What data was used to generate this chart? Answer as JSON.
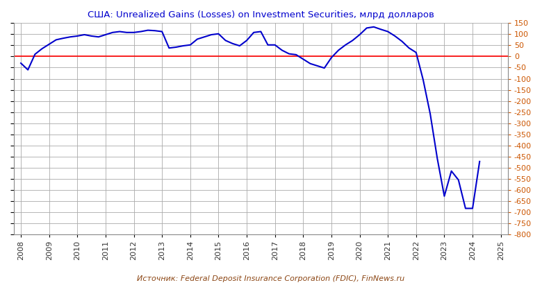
{
  "title": "США: Unrealized Gains (Losses) on Investment Securities, млрд долларов",
  "source": "Источник: Federal Deposit Insurance Corporation (FDIC), FinNews.ru",
  "title_color": "#0000CD",
  "source_color": "#8B4513",
  "line_color": "#0000CC",
  "zero_line_color": "#FF0000",
  "background_color": "#FFFFFF",
  "grid_color": "#AAAAAA",
  "ylim": [
    -800,
    150
  ],
  "ytick_step": 50,
  "xlim": [
    2007.75,
    2025.25
  ],
  "x_years": [
    2008,
    2009,
    2010,
    2011,
    2012,
    2013,
    2014,
    2015,
    2016,
    2017,
    2018,
    2019,
    2020,
    2021,
    2022,
    2023,
    2024,
    2025
  ],
  "data": [
    [
      2008.0,
      -30
    ],
    [
      2008.25,
      -60
    ],
    [
      2008.5,
      10
    ],
    [
      2008.75,
      35
    ],
    [
      2009.0,
      55
    ],
    [
      2009.25,
      75
    ],
    [
      2009.5,
      82
    ],
    [
      2009.75,
      88
    ],
    [
      2010.0,
      92
    ],
    [
      2010.25,
      98
    ],
    [
      2010.5,
      92
    ],
    [
      2010.75,
      88
    ],
    [
      2011.0,
      98
    ],
    [
      2011.25,
      108
    ],
    [
      2011.5,
      112
    ],
    [
      2011.75,
      108
    ],
    [
      2012.0,
      108
    ],
    [
      2012.25,
      112
    ],
    [
      2012.5,
      118
    ],
    [
      2012.75,
      116
    ],
    [
      2013.0,
      112
    ],
    [
      2013.25,
      38
    ],
    [
      2013.5,
      42
    ],
    [
      2013.75,
      48
    ],
    [
      2014.0,
      52
    ],
    [
      2014.25,
      78
    ],
    [
      2014.5,
      88
    ],
    [
      2014.75,
      98
    ],
    [
      2015.0,
      102
    ],
    [
      2015.25,
      72
    ],
    [
      2015.5,
      58
    ],
    [
      2015.75,
      48
    ],
    [
      2016.0,
      72
    ],
    [
      2016.25,
      108
    ],
    [
      2016.5,
      112
    ],
    [
      2016.75,
      52
    ],
    [
      2017.0,
      52
    ],
    [
      2017.25,
      28
    ],
    [
      2017.5,
      12
    ],
    [
      2017.75,
      8
    ],
    [
      2018.0,
      -12
    ],
    [
      2018.25,
      -32
    ],
    [
      2018.5,
      -42
    ],
    [
      2018.75,
      -52
    ],
    [
      2019.0,
      -5
    ],
    [
      2019.25,
      28
    ],
    [
      2019.5,
      52
    ],
    [
      2019.75,
      72
    ],
    [
      2020.0,
      98
    ],
    [
      2020.25,
      128
    ],
    [
      2020.5,
      133
    ],
    [
      2020.75,
      122
    ],
    [
      2021.0,
      112
    ],
    [
      2021.25,
      92
    ],
    [
      2021.5,
      68
    ],
    [
      2021.75,
      38
    ],
    [
      2022.0,
      18
    ],
    [
      2022.25,
      -105
    ],
    [
      2022.5,
      -258
    ],
    [
      2022.75,
      -458
    ],
    [
      2023.0,
      -628
    ],
    [
      2023.25,
      -515
    ],
    [
      2023.5,
      -555
    ],
    [
      2023.75,
      -683
    ],
    [
      2024.0,
      -683
    ],
    [
      2024.25,
      -472
    ]
  ]
}
